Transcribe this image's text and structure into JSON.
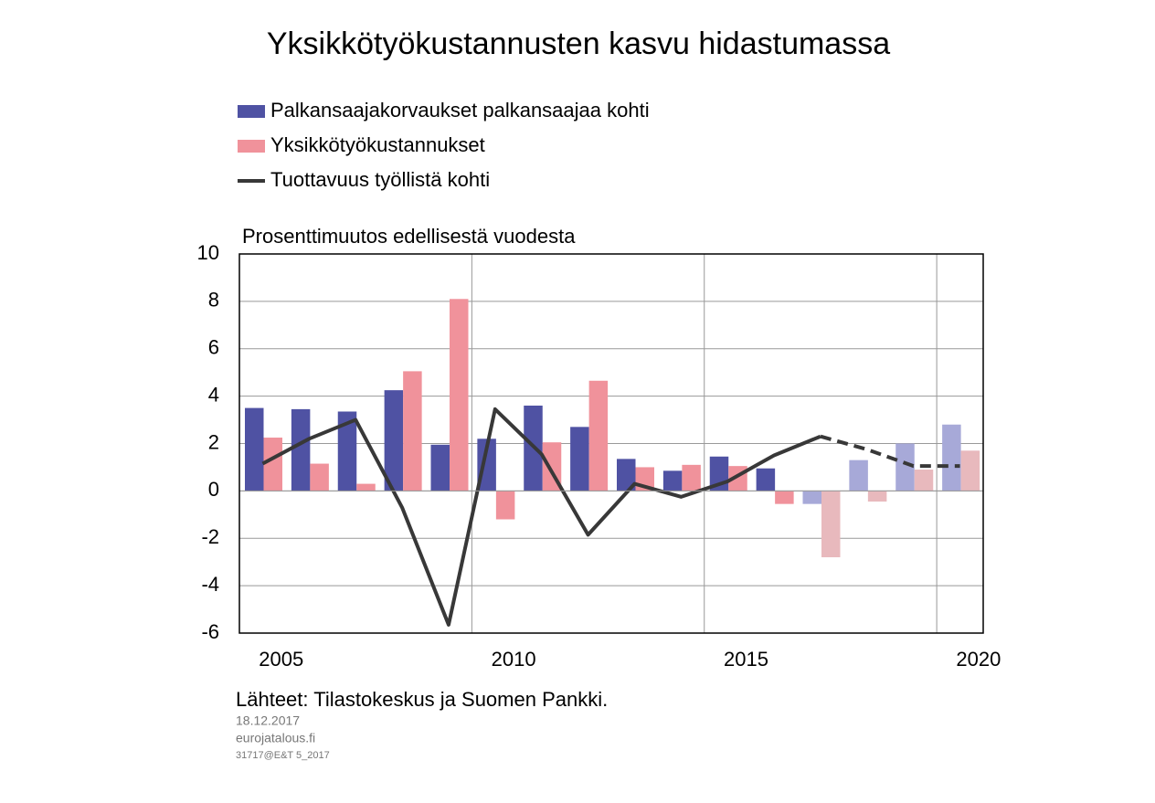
{
  "chart_data": {
    "type": "bar-line",
    "title": "Yksikkötyökustannusten kasvu hidastumassa",
    "y_label": "Prosenttimuutos edellisestä vuodesta",
    "categories": [
      "2005",
      null,
      null,
      null,
      null,
      "2010",
      null,
      null,
      null,
      null,
      "2015",
      null,
      null,
      null,
      null,
      "2020"
    ],
    "forecast_from": 12,
    "series": [
      {
        "name": "Palkansaajakorvaukset palkansaajaa kohti",
        "kind": "bar",
        "color": "#4f52a3",
        "forecast_color": "#a7a9d8",
        "values": [
          3.5,
          3.45,
          3.35,
          4.25,
          1.95,
          2.2,
          3.6,
          2.7,
          1.35,
          0.85,
          1.45,
          0.95,
          -0.55,
          1.3,
          2.0,
          2.8
        ]
      },
      {
        "name": "Yksikkötyökustannukset",
        "kind": "bar",
        "color": "#f0929b",
        "forecast_color": "#e8b9bd",
        "values": [
          2.25,
          1.15,
          0.3,
          5.05,
          8.1,
          -1.2,
          2.05,
          4.65,
          1.0,
          1.1,
          1.05,
          -0.55,
          -2.8,
          -0.45,
          0.9,
          1.7
        ]
      },
      {
        "name": "Tuottavuus työllistä kohti",
        "kind": "line",
        "color": "#383838",
        "forecast_color": "#383838",
        "values": [
          1.15,
          2.2,
          3.0,
          -0.7,
          -5.65,
          3.45,
          1.55,
          -1.85,
          0.3,
          -0.25,
          0.4,
          1.5,
          2.3,
          1.75,
          1.05,
          1.05
        ]
      }
    ],
    "ylim": [
      -6,
      10
    ],
    "yticks": [
      -6,
      -4,
      -2,
      0,
      2,
      4,
      6,
      8,
      10
    ],
    "grid": true,
    "source": "Lähteet: Tilastokeskus ja Suomen Pankki.",
    "notes": [
      "18.12.2017",
      "eurojatalous.fi",
      "31717@E&T 5_2017"
    ]
  }
}
